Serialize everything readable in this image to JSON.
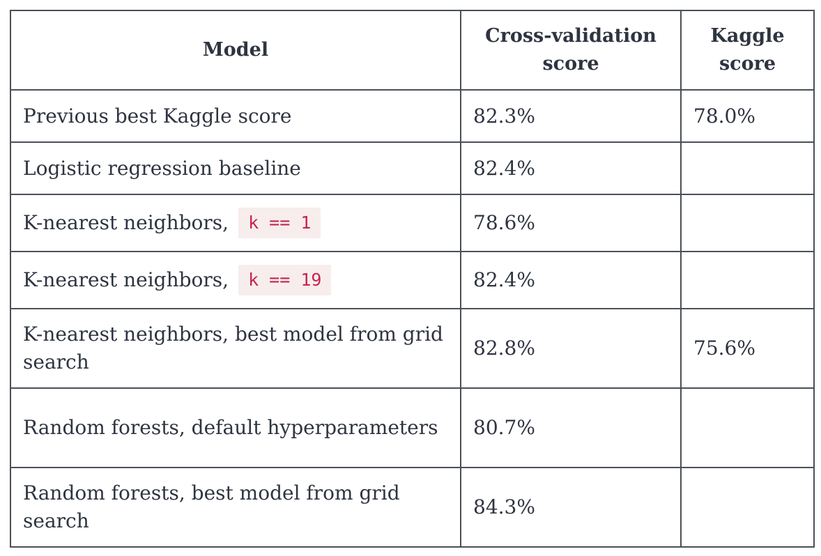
{
  "table": {
    "headers": {
      "model": "Model",
      "cv_score": "Cross-validation score",
      "kaggle_score": "Kaggle score"
    },
    "rows": [
      {
        "model": "Previous best Kaggle score",
        "code": "",
        "cv_score": "82.3%",
        "kaggle_score": "78.0%"
      },
      {
        "model": "Logistic regression baseline",
        "code": "",
        "cv_score": "82.4%",
        "kaggle_score": ""
      },
      {
        "model": "K-nearest neighbors,",
        "code": "k == 1",
        "cv_score": "78.6%",
        "kaggle_score": ""
      },
      {
        "model": "K-nearest neighbors,",
        "code": "k == 19",
        "cv_score": "82.4%",
        "kaggle_score": ""
      },
      {
        "model": "K-nearest neighbors, best model from grid search",
        "code": "",
        "cv_score": "82.8%",
        "kaggle_score": "75.6%"
      },
      {
        "model": "Random forests, default hyperparameters",
        "code": "",
        "cv_score": "80.7%",
        "kaggle_score": ""
      },
      {
        "model": "Random forests, best model from grid search",
        "code": "",
        "cv_score": "84.3%",
        "kaggle_score": ""
      }
    ]
  },
  "colors": {
    "text": "#2e3440",
    "border": "#4a4f57",
    "code_text": "#c7254e",
    "code_background": "#f7eded"
  }
}
